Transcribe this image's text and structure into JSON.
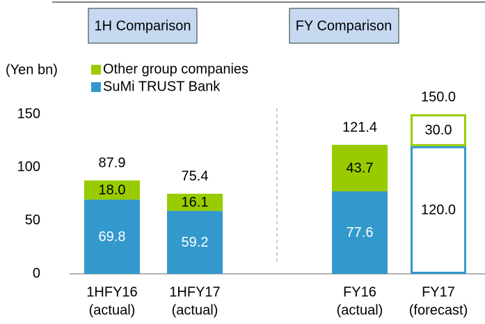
{
  "chart_data": {
    "type": "stacked_bar",
    "headers": [
      "1H Comparison",
      "FY Comparison"
    ],
    "ylabel": "(Yen bn)",
    "categories": [
      [
        "1HFY16",
        "(actual)"
      ],
      [
        "1HFY17",
        "(actual)"
      ],
      [
        "FY16",
        "(actual)"
      ],
      [
        "FY17",
        "(forecast)"
      ]
    ],
    "series": [
      {
        "name": "SuMi TRUST  Bank",
        "color": "#3399cc",
        "values": [
          69.8,
          59.2,
          77.6,
          120
        ],
        "value_labels": [
          "69.8",
          "59.2",
          "77.6",
          "120.0"
        ]
      },
      {
        "name": "Other group companies",
        "color": "#99cc00",
        "values": [
          18,
          16.1,
          43.7,
          30
        ],
        "value_labels": [
          "18.0",
          "16.1",
          "43.7",
          "30.0"
        ]
      }
    ],
    "totals": {
      "values": [
        87.9,
        75.4,
        121.4,
        150
      ],
      "value_labels": [
        "87.9",
        "75.4",
        "121.4",
        "150.0"
      ]
    },
    "outlined": [
      false,
      false,
      false,
      true
    ],
    "ylim": [
      0,
      150
    ],
    "yticks": [
      0,
      50,
      100,
      150
    ]
  }
}
